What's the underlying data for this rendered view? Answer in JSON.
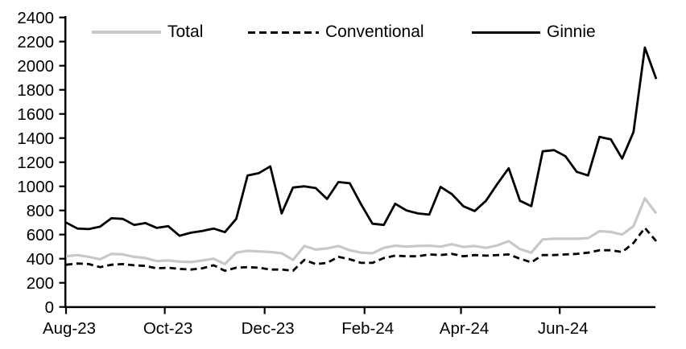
{
  "chart_data": {
    "type": "line",
    "title": "",
    "xlabel": "",
    "ylabel": "",
    "ylim": [
      0,
      2400
    ],
    "y_tick_step": 200,
    "y_tick_labels": [
      "0",
      "200",
      "400",
      "600",
      "800",
      "1000",
      "1200",
      "1400",
      "1600",
      "1800",
      "2000",
      "2200",
      "2400"
    ],
    "x_tick_labels": [
      "Aug-23",
      "Oct-23",
      "Dec-23",
      "Feb-24",
      "Apr-24",
      "Jun-24"
    ],
    "x_tick_week_positions": [
      0,
      8.7,
      17.5,
      26.3,
      34.8,
      43.5
    ],
    "n_points": 53,
    "frequency": "weekly",
    "grid": false,
    "legend_position": "top",
    "axis_color": "#000000",
    "series": [
      {
        "name": "Total",
        "color": "#c8c8c8",
        "dash": null,
        "width": 3.2,
        "values": [
          420,
          430,
          415,
          395,
          440,
          435,
          415,
          405,
          380,
          385,
          375,
          372,
          385,
          400,
          355,
          450,
          465,
          460,
          455,
          445,
          390,
          505,
          475,
          485,
          505,
          470,
          450,
          445,
          490,
          508,
          500,
          505,
          508,
          500,
          520,
          497,
          505,
          490,
          510,
          545,
          480,
          450,
          560,
          565,
          565,
          565,
          570,
          628,
          622,
          600,
          670,
          900,
          775
        ]
      },
      {
        "name": "Conventional",
        "color": "#000000",
        "dash": "8 5",
        "width": 2.8,
        "values": [
          350,
          360,
          355,
          330,
          350,
          355,
          345,
          340,
          320,
          325,
          315,
          310,
          320,
          345,
          300,
          325,
          330,
          325,
          310,
          310,
          300,
          390,
          355,
          365,
          415,
          395,
          365,
          365,
          405,
          425,
          420,
          420,
          435,
          430,
          440,
          420,
          430,
          425,
          430,
          435,
          400,
          370,
          430,
          430,
          435,
          440,
          450,
          470,
          470,
          455,
          530,
          655,
          545
        ]
      },
      {
        "name": "Ginnie",
        "color": "#000000",
        "dash": null,
        "width": 2.8,
        "values": [
          700,
          650,
          645,
          665,
          735,
          730,
          680,
          695,
          655,
          670,
          590,
          615,
          630,
          650,
          620,
          730,
          1090,
          1110,
          1165,
          775,
          990,
          1000,
          985,
          895,
          1035,
          1025,
          850,
          690,
          680,
          855,
          800,
          775,
          765,
          995,
          935,
          835,
          795,
          880,
          1020,
          1150,
          880,
          835,
          1290,
          1300,
          1250,
          1120,
          1090,
          1410,
          1390,
          1230,
          1450,
          2150,
          1890
        ]
      }
    ]
  }
}
